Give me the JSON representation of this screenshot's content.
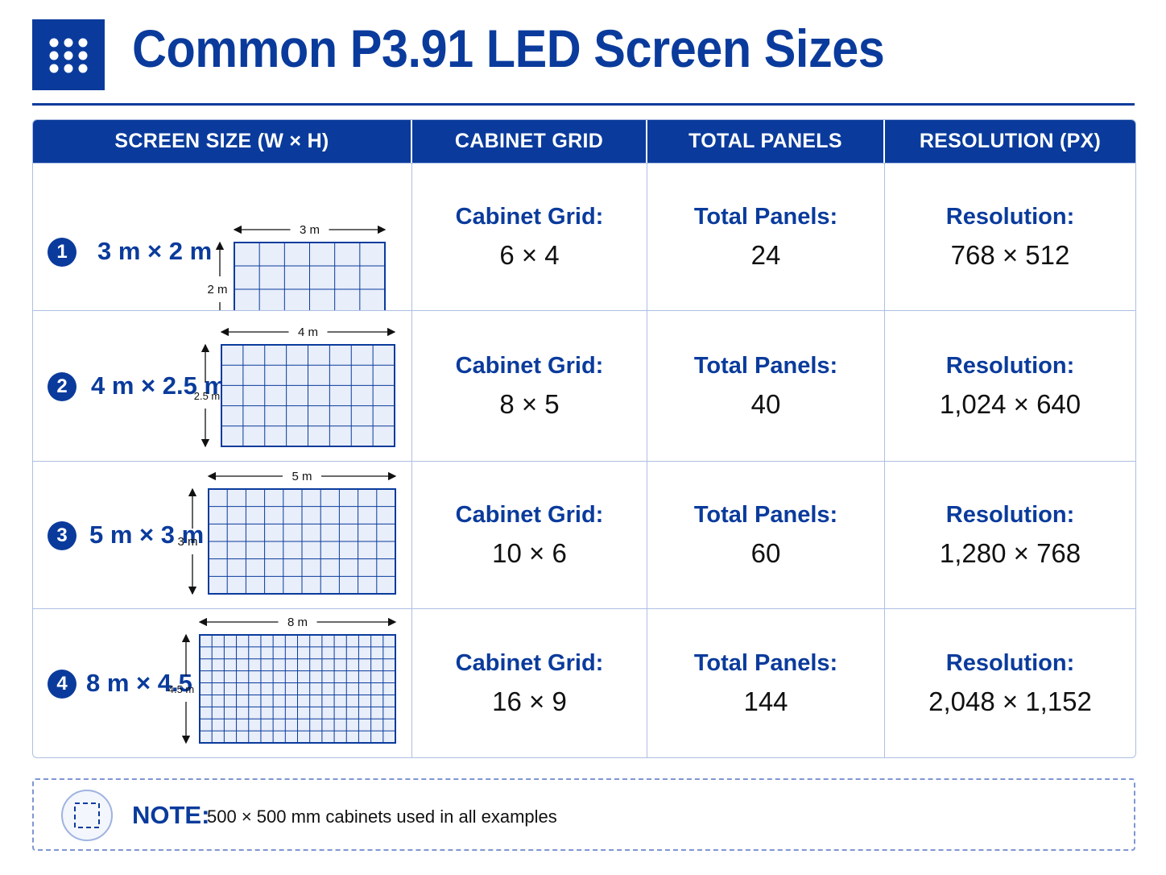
{
  "title": "Common P3.91 LED Screen Sizes",
  "logo_icon": "grid-dots-icon",
  "colors": {
    "primary": "#0a3b9c",
    "border": "#aebfe3",
    "panel_fill": "#e8eefa"
  },
  "table": {
    "headers": [
      "SCREEN SIZE (W × H)",
      "CABINET GRID",
      "TOTAL PANELS",
      "RESOLUTION (PX)"
    ],
    "rows": [
      {
        "number": "1",
        "size": "3 m × 2 m",
        "width_label": "3 m",
        "height_label": "2 m",
        "cols": 6,
        "rows": 4,
        "grid_label": "Cabinet Grid:",
        "grid": "6 × 4",
        "panels_label": "Total Panels:",
        "panels": "24",
        "resolution_label": "Resolution:",
        "resolution": "768 × 512"
      },
      {
        "number": "2",
        "size": "4 m × 2.5 m",
        "width_label": "4 m",
        "height_label": "2.5 m",
        "cols": 8,
        "rows": 5,
        "grid_label": "Cabinet Grid:",
        "grid": "8 × 5",
        "panels_label": "Total Panels:",
        "panels": "40",
        "resolution_label": "Resolution:",
        "resolution": "1,024 × 640"
      },
      {
        "number": "3",
        "size": "5 m × 3 m",
        "width_label": "5 m",
        "height_label": "3 m",
        "cols": 10,
        "rows": 6,
        "grid_label": "Cabinet Grid:",
        "grid": "10 × 6",
        "panels_label": "Total Panels:",
        "panels": "60",
        "resolution_label": "Resolution:",
        "resolution": "1,280 × 768"
      },
      {
        "number": "4",
        "size": "8 m × 4.5 m",
        "width_label": "8 m",
        "height_label": "4.5 m",
        "cols": 16,
        "rows": 9,
        "grid_label": "Cabinet Grid:",
        "grid": "16 × 9",
        "panels_label": "Total Panels:",
        "panels": "144",
        "resolution_label": "Resolution:",
        "resolution": "2,048 × 1,152"
      }
    ]
  },
  "note": {
    "icon": "dashed-square-icon",
    "label": "NOTE:",
    "text": "500 × 500 mm cabinets used in all examples"
  }
}
